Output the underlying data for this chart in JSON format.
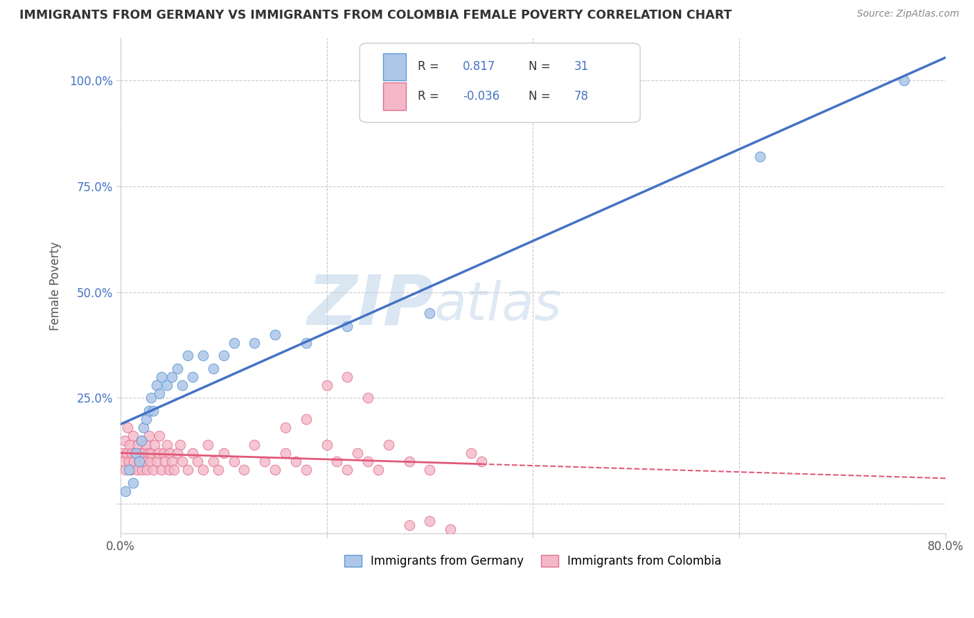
{
  "title": "IMMIGRANTS FROM GERMANY VS IMMIGRANTS FROM COLOMBIA FEMALE POVERTY CORRELATION CHART",
  "source": "Source: ZipAtlas.com",
  "xlabel_germany": "Immigrants from Germany",
  "xlabel_colombia": "Immigrants from Colombia",
  "ylabel": "Female Poverty",
  "xlim": [
    0.0,
    0.8
  ],
  "ylim": [
    -0.07,
    1.1
  ],
  "xticks": [
    0.0,
    0.2,
    0.4,
    0.6,
    0.8
  ],
  "yticks": [
    0.0,
    0.25,
    0.5,
    0.75,
    1.0
  ],
  "germany_R": 0.817,
  "germany_N": 31,
  "colombia_R": -0.036,
  "colombia_N": 78,
  "germany_color": "#aec6e8",
  "germany_edge_color": "#5b9bd5",
  "germany_line_color": "#4472c4",
  "colombia_color": "#f4b8c8",
  "colombia_edge_color": "#e07090",
  "colombia_line_color": "#e05878",
  "watermark_zip_color": "#c8d8ec",
  "watermark_atlas_color": "#c8d8ec",
  "background_color": "#ffffff",
  "grid_color": "#c8c8c8",
  "tick_color": "#4472c4",
  "germany_scatter_x": [
    0.005,
    0.008,
    0.012,
    0.015,
    0.018,
    0.02,
    0.022,
    0.025,
    0.028,
    0.03,
    0.032,
    0.035,
    0.038,
    0.04,
    0.045,
    0.05,
    0.055,
    0.06,
    0.065,
    0.07,
    0.08,
    0.09,
    0.1,
    0.11,
    0.13,
    0.15,
    0.18,
    0.22,
    0.3,
    0.62,
    0.76
  ],
  "germany_scatter_y": [
    0.03,
    0.08,
    0.05,
    0.12,
    0.1,
    0.15,
    0.18,
    0.2,
    0.22,
    0.25,
    0.22,
    0.28,
    0.26,
    0.3,
    0.28,
    0.3,
    0.32,
    0.28,
    0.35,
    0.3,
    0.35,
    0.32,
    0.35,
    0.38,
    0.38,
    0.4,
    0.38,
    0.42,
    0.45,
    0.82,
    1.0
  ],
  "colombia_scatter_x": [
    0.002,
    0.003,
    0.004,
    0.005,
    0.006,
    0.007,
    0.008,
    0.009,
    0.01,
    0.011,
    0.012,
    0.013,
    0.015,
    0.016,
    0.017,
    0.018,
    0.019,
    0.02,
    0.021,
    0.022,
    0.023,
    0.025,
    0.026,
    0.027,
    0.028,
    0.029,
    0.03,
    0.032,
    0.033,
    0.035,
    0.037,
    0.038,
    0.04,
    0.042,
    0.043,
    0.045,
    0.047,
    0.048,
    0.05,
    0.052,
    0.055,
    0.058,
    0.06,
    0.065,
    0.07,
    0.075,
    0.08,
    0.085,
    0.09,
    0.095,
    0.1,
    0.11,
    0.12,
    0.13,
    0.14,
    0.15,
    0.16,
    0.17,
    0.18,
    0.2,
    0.21,
    0.22,
    0.23,
    0.24,
    0.25,
    0.26,
    0.28,
    0.3,
    0.2,
    0.22,
    0.24,
    0.16,
    0.18,
    0.28,
    0.3,
    0.32,
    0.34,
    0.35
  ],
  "colombia_scatter_y": [
    0.12,
    0.1,
    0.15,
    0.08,
    0.12,
    0.18,
    0.1,
    0.14,
    0.08,
    0.12,
    0.16,
    0.1,
    0.12,
    0.08,
    0.14,
    0.1,
    0.12,
    0.15,
    0.08,
    0.12,
    0.1,
    0.14,
    0.08,
    0.12,
    0.16,
    0.1,
    0.12,
    0.08,
    0.14,
    0.1,
    0.12,
    0.16,
    0.08,
    0.12,
    0.1,
    0.14,
    0.08,
    0.12,
    0.1,
    0.08,
    0.12,
    0.14,
    0.1,
    0.08,
    0.12,
    0.1,
    0.08,
    0.14,
    0.1,
    0.08,
    0.12,
    0.1,
    0.08,
    0.14,
    0.1,
    0.08,
    0.12,
    0.1,
    0.08,
    0.14,
    0.1,
    0.08,
    0.12,
    0.1,
    0.08,
    0.14,
    0.1,
    0.08,
    0.28,
    0.3,
    0.25,
    0.18,
    0.2,
    -0.05,
    -0.04,
    -0.06,
    0.12,
    0.1
  ]
}
